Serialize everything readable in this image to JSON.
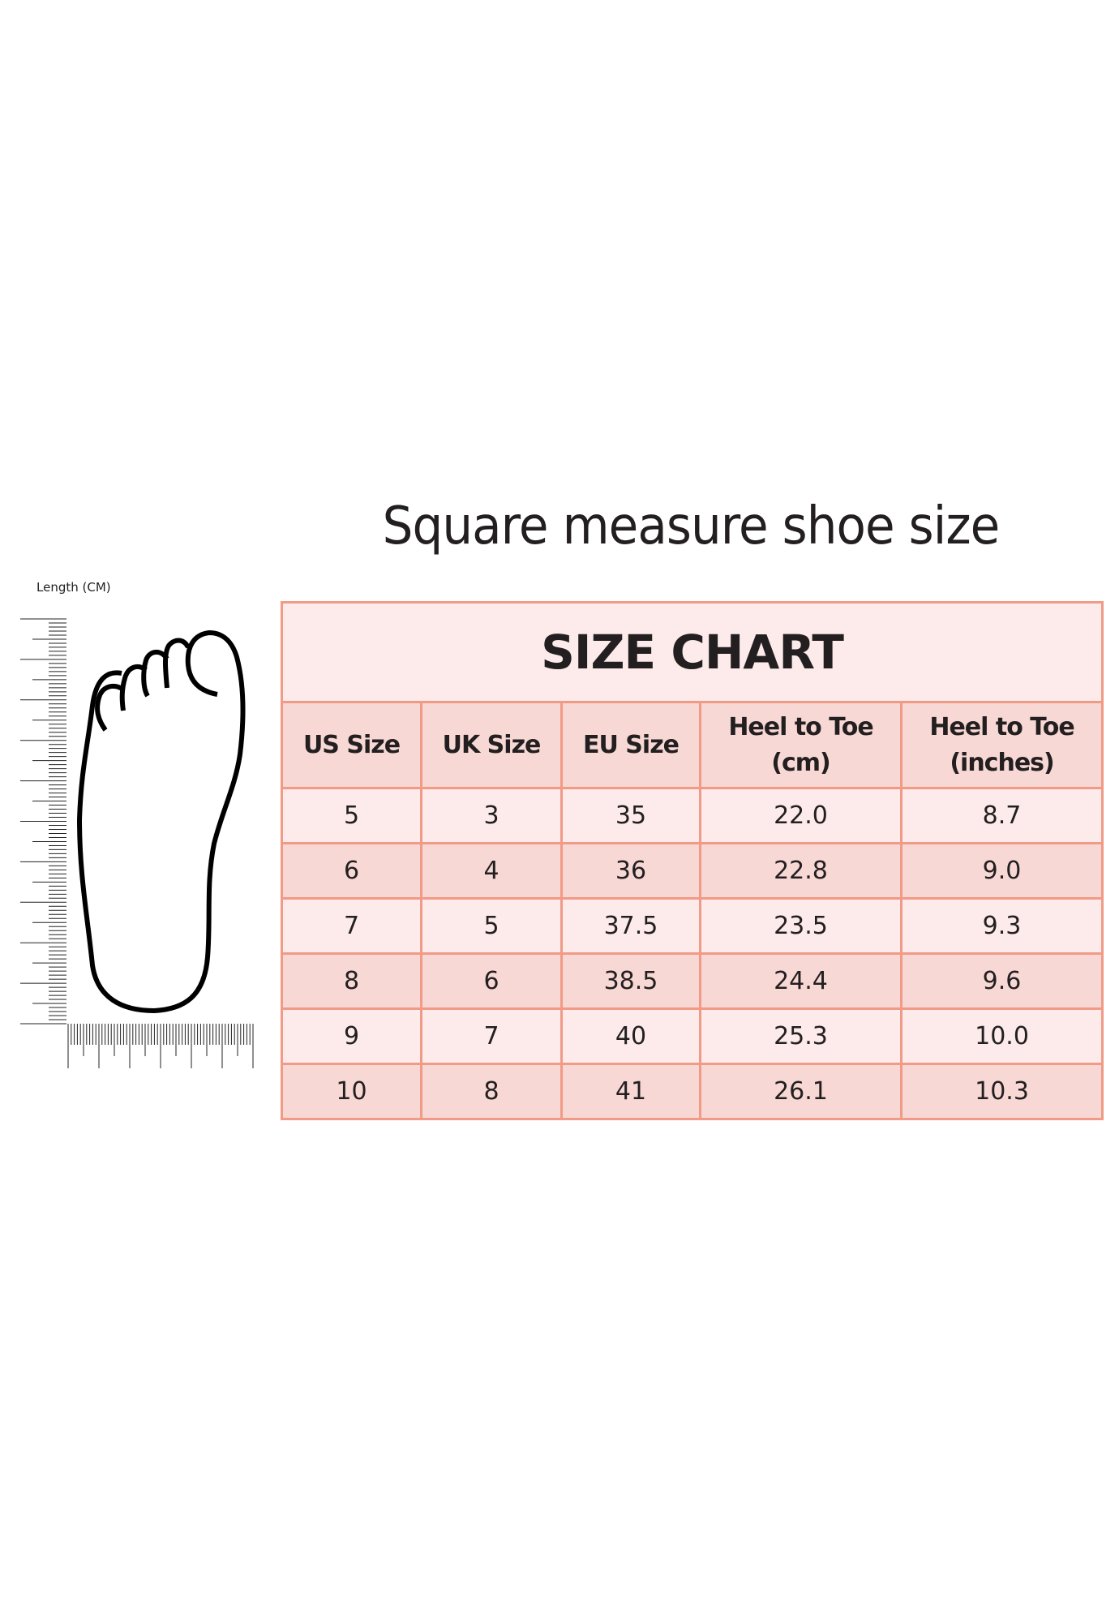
{
  "title": "Square measure shoe size",
  "ruler_label": "Length (CM)",
  "chart": {
    "heading": "SIZE CHART",
    "columns": [
      "US Size",
      "UK Size",
      "EU Size",
      "Heel to Toe (cm)",
      "Heel to Toe (inches)"
    ],
    "rows": [
      [
        "5",
        "3",
        "35",
        "22.0",
        "8.7"
      ],
      [
        "6",
        "4",
        "36",
        "22.8",
        "9.0"
      ],
      [
        "7",
        "5",
        "37.5",
        "23.5",
        "9.3"
      ],
      [
        "8",
        "6",
        "38.5",
        "24.4",
        "9.6"
      ],
      [
        "9",
        "7",
        "40",
        "25.3",
        "10.0"
      ],
      [
        "10",
        "8",
        "41",
        "26.1",
        "10.3"
      ]
    ]
  },
  "colors": {
    "border": "#f19a86",
    "light_row": "#fcebea",
    "dark_row": "#f7d8d4"
  }
}
